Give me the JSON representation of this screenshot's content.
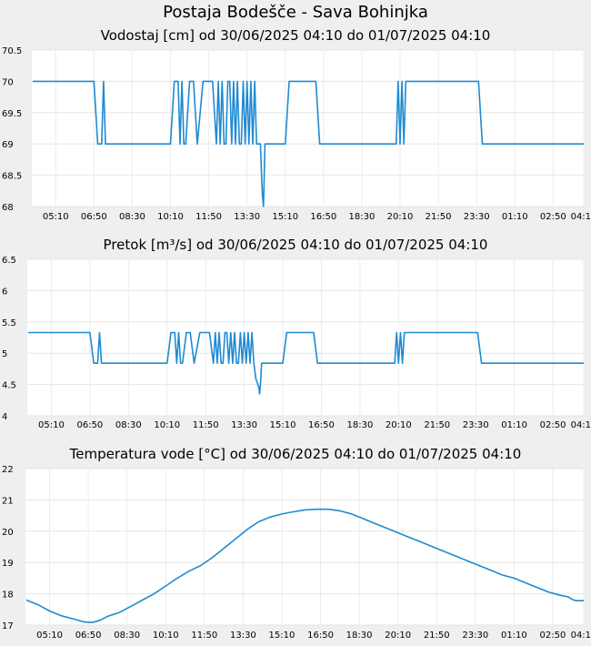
{
  "page": {
    "title": "Postaja Bodešče - Sava Bohinjka"
  },
  "chart_data": [
    {
      "type": "line",
      "title": "Vodostaj [cm] od 30/06/2025 04:10 do 01/07/2025 04:10",
      "xlabel": "",
      "ylabel": "",
      "x_tick_labels": [
        "05:10",
        "06:50",
        "08:30",
        "10:10",
        "11:50",
        "13:30",
        "15:10",
        "16:50",
        "18:30",
        "20:10",
        "21:50",
        "23:30",
        "01:10",
        "02:50",
        "04:10"
      ],
      "x_tick_minutes": [
        60,
        160,
        260,
        360,
        460,
        560,
        660,
        760,
        860,
        960,
        1060,
        1160,
        1260,
        1360,
        1440
      ],
      "y_tick_labels": [
        "68",
        "68.5",
        "69",
        "69.5",
        "70",
        "70.5"
      ],
      "ylim": [
        68,
        70.5
      ],
      "grid": true,
      "color": "#1f8ad2",
      "series": [
        {
          "x_minutes": [
            0,
            160,
            170,
            180,
            185,
            190,
            195,
            200,
            210,
            360,
            370,
            380,
            385,
            390,
            395,
            400,
            410,
            420,
            430,
            445,
            450,
            470,
            480,
            485,
            490,
            495,
            500,
            505,
            510,
            515,
            520,
            525,
            530,
            535,
            540,
            545,
            550,
            555,
            560,
            565,
            570,
            575,
            580,
            585,
            590,
            595,
            598,
            600,
            603,
            605,
            607,
            610,
            660,
            670,
            740,
            750,
            950,
            955,
            960,
            965,
            970,
            975,
            980,
            1165,
            1175,
            1440
          ],
          "values": [
            70,
            70,
            69,
            69,
            70,
            69,
            69,
            69,
            69,
            69,
            70,
            70,
            69,
            70,
            69,
            69,
            70,
            70,
            69,
            70,
            70,
            70,
            69,
            70,
            69,
            70,
            69,
            69,
            70,
            70,
            69,
            70,
            69,
            70,
            69,
            69,
            70,
            69,
            70,
            69,
            70,
            69,
            70,
            69,
            69,
            69,
            68.5,
            68.2,
            68,
            68.5,
            69,
            69,
            69,
            70,
            70,
            69,
            69,
            70,
            69,
            70,
            69,
            70,
            70,
            70,
            69,
            69
          ]
        }
      ]
    },
    {
      "type": "line",
      "title": "Pretok [m³/s] od 30/06/2025 04:10 do 01/07/2025 04:10",
      "xlabel": "",
      "ylabel": "",
      "x_tick_labels": [
        "05:10",
        "06:50",
        "08:30",
        "10:10",
        "11:50",
        "13:30",
        "15:10",
        "16:50",
        "18:30",
        "20:10",
        "21:50",
        "23:30",
        "01:10",
        "02:50",
        "04:10"
      ],
      "x_tick_minutes": [
        60,
        160,
        260,
        360,
        460,
        560,
        660,
        760,
        860,
        960,
        1060,
        1160,
        1260,
        1360,
        1440
      ],
      "y_tick_labels": [
        "4",
        "4.5",
        "5",
        "5.5",
        "6",
        "6.5"
      ],
      "ylim": [
        4,
        6.5
      ],
      "grid": true,
      "color": "#1f8ad2",
      "series": [
        {
          "x_minutes": [
            0,
            160,
            170,
            180,
            185,
            190,
            195,
            200,
            210,
            360,
            370,
            380,
            385,
            390,
            395,
            400,
            410,
            420,
            430,
            445,
            450,
            470,
            480,
            485,
            490,
            495,
            500,
            505,
            510,
            515,
            520,
            525,
            530,
            535,
            540,
            545,
            550,
            555,
            560,
            565,
            570,
            575,
            580,
            585,
            590,
            598,
            600,
            603,
            605,
            607,
            610,
            660,
            670,
            740,
            750,
            950,
            955,
            960,
            965,
            970,
            975,
            980,
            1165,
            1175,
            1440
          ],
          "values": [
            5.33,
            5.33,
            4.84,
            4.84,
            5.33,
            4.84,
            4.84,
            4.84,
            4.84,
            4.84,
            5.33,
            5.33,
            4.84,
            5.33,
            4.84,
            4.84,
            5.33,
            5.33,
            4.84,
            5.33,
            5.33,
            5.33,
            4.84,
            5.33,
            4.84,
            5.33,
            4.84,
            4.84,
            5.33,
            5.33,
            4.84,
            5.33,
            4.84,
            5.33,
            4.84,
            4.84,
            5.33,
            4.84,
            5.33,
            4.84,
            5.33,
            4.84,
            5.33,
            4.84,
            4.6,
            4.45,
            4.35,
            4.6,
            4.84,
            4.84,
            4.84,
            4.84,
            5.33,
            5.33,
            4.84,
            4.84,
            5.33,
            4.84,
            5.33,
            4.84,
            5.33,
            5.33,
            5.33,
            4.84,
            4.84
          ]
        }
      ]
    },
    {
      "type": "line",
      "title": "Temperatura vode [°C] od 30/06/2025 04:10 do 01/07/2025 04:10",
      "xlabel": "",
      "ylabel": "",
      "x_tick_labels": [
        "05:10",
        "06:50",
        "08:30",
        "10:10",
        "11:50",
        "13:30",
        "15:10",
        "16:50",
        "18:30",
        "20:10",
        "21:50",
        "23:30",
        "01:10",
        "02:50",
        "04:10"
      ],
      "x_tick_minutes": [
        60,
        160,
        260,
        360,
        460,
        560,
        660,
        760,
        860,
        960,
        1060,
        1160,
        1260,
        1360,
        1440
      ],
      "y_tick_labels": [
        "17",
        "18",
        "19",
        "20",
        "21",
        "22"
      ],
      "ylim": [
        17,
        22
      ],
      "grid": true,
      "color": "#1f8ad2",
      "series": [
        {
          "x_minutes": [
            0,
            30,
            60,
            90,
            120,
            150,
            170,
            190,
            210,
            240,
            270,
            300,
            330,
            360,
            390,
            420,
            450,
            480,
            510,
            540,
            570,
            600,
            630,
            660,
            690,
            720,
            750,
            780,
            810,
            840,
            870,
            900,
            930,
            960,
            990,
            1020,
            1050,
            1080,
            1110,
            1140,
            1170,
            1200,
            1230,
            1260,
            1290,
            1320,
            1350,
            1380,
            1400,
            1410,
            1420,
            1440
          ],
          "values": [
            17.8,
            17.65,
            17.45,
            17.3,
            17.2,
            17.1,
            17.08,
            17.15,
            17.28,
            17.4,
            17.6,
            17.8,
            18.0,
            18.25,
            18.5,
            18.72,
            18.9,
            19.15,
            19.45,
            19.75,
            20.05,
            20.3,
            20.45,
            20.55,
            20.62,
            20.68,
            20.7,
            20.7,
            20.65,
            20.55,
            20.4,
            20.25,
            20.1,
            19.95,
            19.8,
            19.65,
            19.5,
            19.35,
            19.2,
            19.05,
            18.9,
            18.75,
            18.6,
            18.5,
            18.35,
            18.2,
            18.05,
            17.95,
            17.9,
            17.82,
            17.78,
            17.78
          ]
        }
      ]
    }
  ]
}
